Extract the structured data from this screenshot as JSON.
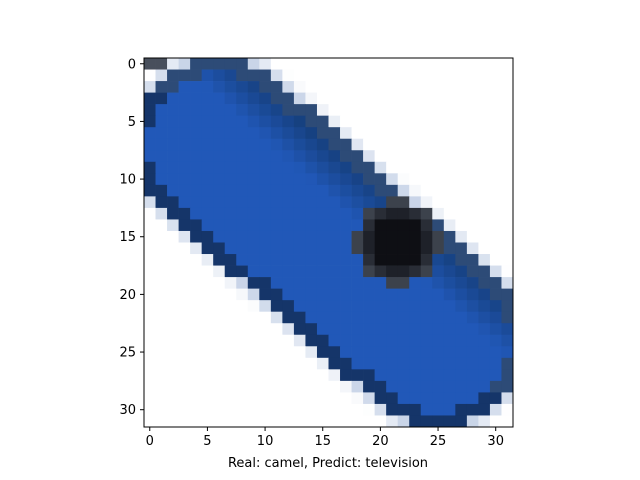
{
  "chart_data": {
    "type": "heatmap",
    "title": "",
    "xlabel": "Real: camel, Predict: television",
    "ylabel": "",
    "x_ticks": [
      "0",
      "5",
      "10",
      "15",
      "20",
      "25",
      "30"
    ],
    "y_ticks": [
      "0",
      "5",
      "10",
      "15",
      "20",
      "25",
      "30"
    ],
    "xlim": [
      -0.5,
      31.5
    ],
    "ylim": [
      31.5,
      -0.5
    ],
    "grid": false,
    "image_description": "32x32 pixelated image showing a blue elongated object tilted diagonally from upper-left to lower-right, with a dark lens-like circle near the right middle",
    "colors": {
      "background": "#ffffff",
      "object_blue": "#2158b8",
      "object_dark_blue": "#153e7a",
      "lens_dark": "#14161c",
      "edge_gray": "#5a6270",
      "light_edge": "#c8d4e8"
    }
  }
}
